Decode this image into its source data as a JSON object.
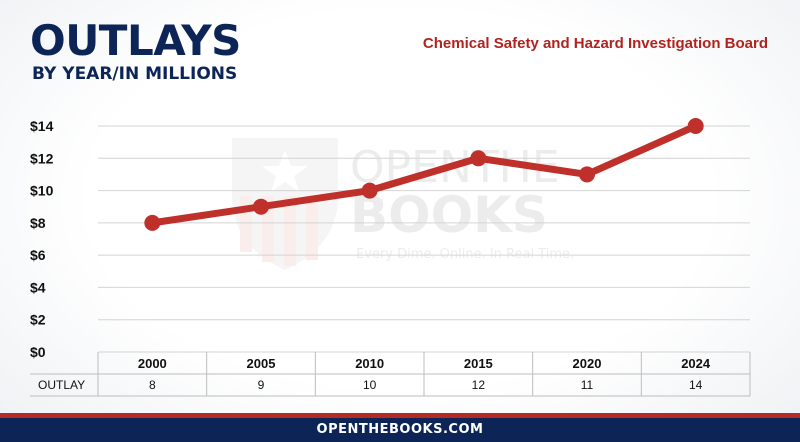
{
  "header": {
    "title": "OUTLAYS",
    "subtitle": "BY YEAR/IN MILLIONS",
    "agency": "Chemical Safety and Hazard Investigation Board"
  },
  "watermark": {
    "line1": "OPENTHE",
    "line2": "BOOKS",
    "tagline": "Every Dime. Online. In Real Time."
  },
  "footer": {
    "site": "OPENTHEBOOKS.COM"
  },
  "colors": {
    "navy": "#0c2556",
    "red": "#b42a25",
    "line": "#c0302b"
  },
  "chart_data": {
    "type": "line",
    "categories": [
      "2000",
      "2005",
      "2010",
      "2015",
      "2020",
      "2024"
    ],
    "series": [
      {
        "values": [
          8,
          9,
          10,
          12,
          11,
          14
        ]
      }
    ],
    "table": {
      "row_label": "OUTLAY",
      "values": [
        "8",
        "9",
        "10",
        "12",
        "11",
        "14"
      ]
    },
    "y_ticks": [
      "$0",
      "$2",
      "$4",
      "$6",
      "$8",
      "$10",
      "$12",
      "$14"
    ],
    "ylim": [
      0,
      14
    ],
    "grid": true,
    "legend": "none"
  }
}
